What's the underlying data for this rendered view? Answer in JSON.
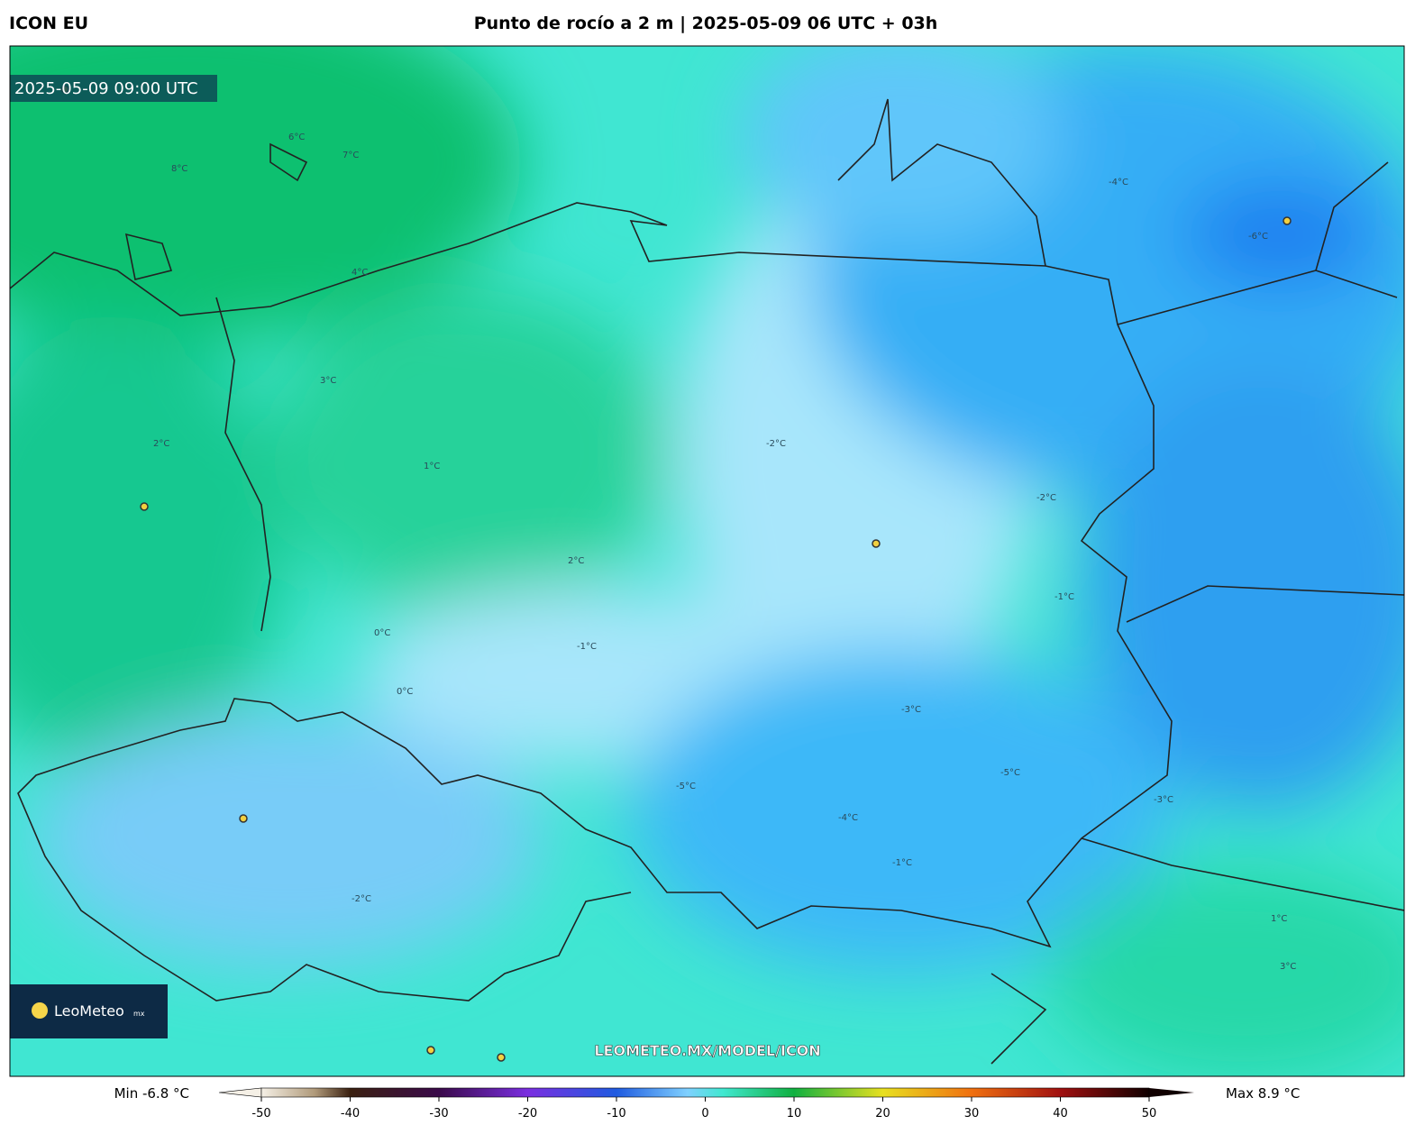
{
  "header": {
    "model": "ICON EU",
    "title": "Punto de rocío a 2 m | 2025-05-09 06 UTC + 03h"
  },
  "map": {
    "timestamp": "2025-05-09 09:00 UTC",
    "url": "LEOMETEO.MX/MODEL/ICON",
    "logo": "LeoMeteo",
    "logo_suffix": "mx",
    "contour_labels": [
      "8°C",
      "7°C",
      "6°C",
      "4°C",
      "3°C",
      "2°C",
      "1°C",
      "0°C",
      "-1°C",
      "-2°C",
      "-3°C",
      "-4°C",
      "-5°C",
      "-6°C",
      "-2°C",
      "-1°C",
      "-3°C",
      "-4°C",
      "-5°C",
      "2°C",
      "1°C",
      "3°C",
      "-2°C",
      "-1°C",
      "0°C"
    ]
  },
  "colorbar": {
    "min_label": "Min -6.8 °C",
    "max_label": "Max 8.9 °C",
    "lim": [
      -50,
      50
    ],
    "ticks": [
      -50,
      -40,
      -30,
      -20,
      -10,
      0,
      10,
      20,
      30,
      40,
      50
    ]
  }
}
